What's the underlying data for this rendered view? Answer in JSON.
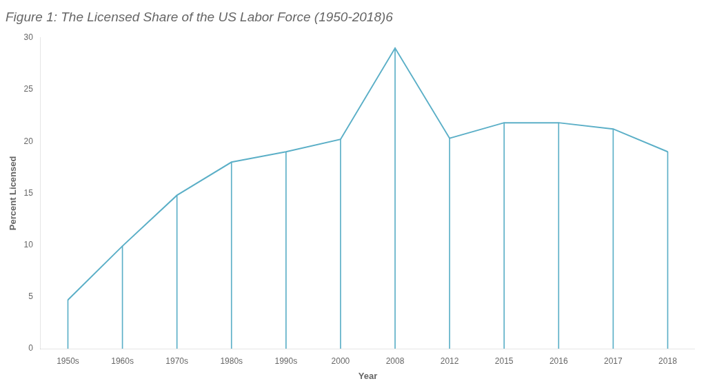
{
  "chart_data": {
    "type": "line",
    "title": "Figure 1: The Licensed Share of the US Labor Force (1950-2018)6",
    "x_label": "Year",
    "y_label": "Percent Licensed",
    "categories": [
      "1950s",
      "1960s",
      "1970s",
      "1980s",
      "1990s",
      "2000",
      "2008",
      "2012",
      "2015",
      "2016",
      "2017",
      "2018"
    ],
    "values": [
      4.7,
      9.9,
      14.8,
      18.0,
      19.0,
      20.2,
      29.0,
      20.3,
      21.8,
      21.8,
      21.2,
      19.0
    ],
    "color": "#5bafc7",
    "ylim": [
      0,
      30
    ],
    "yticks": [
      0,
      5,
      10,
      15,
      20,
      25,
      30
    ],
    "grid": false,
    "legend": false
  }
}
